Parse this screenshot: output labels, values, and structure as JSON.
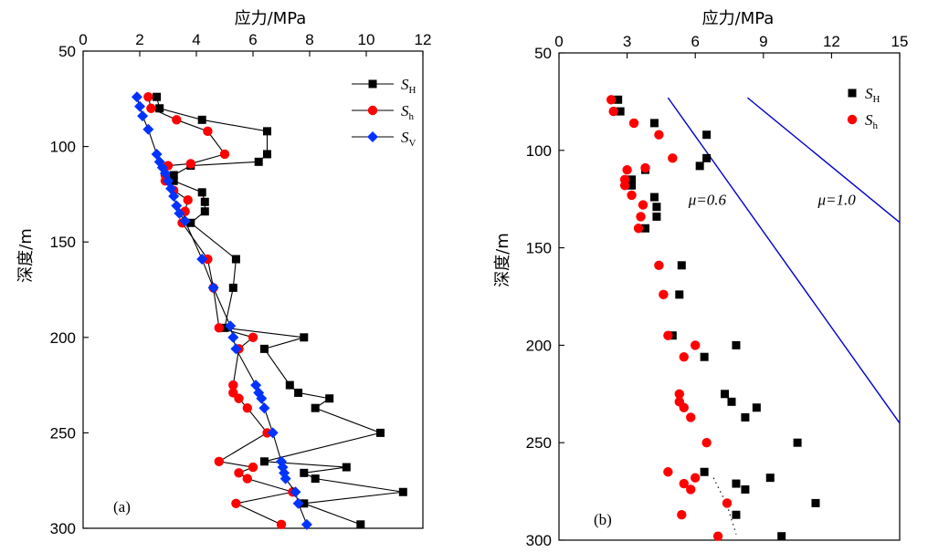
{
  "chart_data": [
    {
      "panel": "(a)",
      "type": "line",
      "xlabel": "应力/MPa",
      "ylabel": "深度/m",
      "xlim": [
        0,
        12
      ],
      "ylim": [
        50,
        300
      ],
      "y_inverted": true,
      "x_axis_position": "top",
      "xticks": [
        "0",
        "2",
        "4",
        "6",
        "8",
        "10",
        "12"
      ],
      "yticks": [
        "50",
        "100",
        "150",
        "200",
        "250",
        "300"
      ],
      "legend_placement": "top-right",
      "series": [
        {
          "name": "S",
          "sub": "H",
          "color": "#000000",
          "marker": "square",
          "points": [
            [
              2.6,
              74
            ],
            [
              2.7,
              80
            ],
            [
              4.2,
              86
            ],
            [
              6.5,
              92
            ],
            [
              6.5,
              104
            ],
            [
              6.2,
              108
            ],
            [
              3.8,
              110
            ],
            [
              3.2,
              115
            ],
            [
              3.2,
              118
            ],
            [
              4.2,
              124
            ],
            [
              4.3,
              129
            ],
            [
              4.3,
              134
            ],
            [
              3.8,
              140
            ],
            [
              5.4,
              159
            ],
            [
              5.3,
              174
            ],
            [
              5.0,
              195
            ],
            [
              7.8,
              200
            ],
            [
              6.4,
              206
            ],
            [
              7.3,
              225
            ],
            [
              7.6,
              229
            ],
            [
              8.7,
              232
            ],
            [
              8.2,
              237
            ],
            [
              10.5,
              250
            ],
            [
              6.4,
              265
            ],
            [
              9.3,
              268
            ],
            [
              7.8,
              271
            ],
            [
              8.2,
              274
            ],
            [
              11.3,
              281
            ],
            [
              7.8,
              287
            ],
            [
              9.8,
              298
            ]
          ]
        },
        {
          "name": "S",
          "sub": "h",
          "color": "#ff0000",
          "marker": "circle",
          "points": [
            [
              2.3,
              74
            ],
            [
              2.4,
              80
            ],
            [
              3.3,
              86
            ],
            [
              4.4,
              92
            ],
            [
              5.0,
              104
            ],
            [
              3.8,
              109
            ],
            [
              3.0,
              110
            ],
            [
              2.9,
              115
            ],
            [
              2.9,
              118
            ],
            [
              3.2,
              123
            ],
            [
              3.7,
              128
            ],
            [
              3.6,
              134
            ],
            [
              3.5,
              140
            ],
            [
              4.4,
              159
            ],
            [
              4.6,
              174
            ],
            [
              4.8,
              195
            ],
            [
              6.0,
              200
            ],
            [
              5.5,
              206
            ],
            [
              5.3,
              225
            ],
            [
              5.3,
              229
            ],
            [
              5.5,
              232
            ],
            [
              5.8,
              237
            ],
            [
              6.5,
              250
            ],
            [
              4.8,
              265
            ],
            [
              6.0,
              268
            ],
            [
              5.5,
              271
            ],
            [
              5.8,
              274
            ],
            [
              7.4,
              281
            ],
            [
              5.4,
              287
            ],
            [
              7.0,
              298
            ]
          ]
        },
        {
          "name": "S",
          "sub": "V",
          "color": "#0033ff",
          "marker": "diamond",
          "points": [
            [
              1.9,
              74
            ],
            [
              2.0,
              79
            ],
            [
              2.1,
              84
            ],
            [
              2.3,
              91
            ],
            [
              2.6,
              104
            ],
            [
              2.7,
              108
            ],
            [
              2.8,
              111
            ],
            [
              2.9,
              114
            ],
            [
              3.0,
              118
            ],
            [
              3.1,
              122
            ],
            [
              3.2,
              126
            ],
            [
              3.3,
              131
            ],
            [
              3.4,
              135
            ],
            [
              3.6,
              139
            ],
            [
              4.2,
              159
            ],
            [
              4.6,
              174
            ],
            [
              5.2,
              194
            ],
            [
              5.3,
              200
            ],
            [
              5.4,
              206
            ],
            [
              6.1,
              225
            ],
            [
              6.2,
              229
            ],
            [
              6.3,
              232
            ],
            [
              6.4,
              237
            ],
            [
              6.7,
              250
            ],
            [
              7.0,
              265
            ],
            [
              7.05,
              268
            ],
            [
              7.1,
              271
            ],
            [
              7.15,
              274
            ],
            [
              7.5,
              281
            ],
            [
              7.6,
              287
            ],
            [
              7.9,
              298
            ]
          ]
        }
      ]
    },
    {
      "panel": "(b)",
      "type": "scatter",
      "xlabel": "应力/MPa",
      "ylabel": "深度/m",
      "xlim": [
        0,
        15
      ],
      "ylim": [
        50,
        300
      ],
      "y_inverted": true,
      "x_axis_position": "top",
      "xticks": [
        "0",
        "3",
        "6",
        "9",
        "12",
        "15"
      ],
      "yticks": [
        "50",
        "100",
        "150",
        "200",
        "250",
        "300"
      ],
      "legend_placement": "top-right",
      "series": [
        {
          "name": "S",
          "sub": "H",
          "color": "#000000",
          "marker": "square",
          "points": [
            [
              2.6,
              74
            ],
            [
              2.7,
              80
            ],
            [
              4.2,
              86
            ],
            [
              6.5,
              92
            ],
            [
              6.5,
              104
            ],
            [
              6.2,
              108
            ],
            [
              3.8,
              110
            ],
            [
              3.2,
              115
            ],
            [
              3.2,
              118
            ],
            [
              4.2,
              124
            ],
            [
              4.3,
              129
            ],
            [
              4.3,
              134
            ],
            [
              3.8,
              140
            ],
            [
              5.4,
              159
            ],
            [
              5.3,
              174
            ],
            [
              5.0,
              195
            ],
            [
              7.8,
              200
            ],
            [
              6.4,
              206
            ],
            [
              7.3,
              225
            ],
            [
              7.6,
              229
            ],
            [
              8.7,
              232
            ],
            [
              8.2,
              237
            ],
            [
              10.5,
              250
            ],
            [
              6.4,
              265
            ],
            [
              9.3,
              268
            ],
            [
              7.8,
              271
            ],
            [
              8.2,
              274
            ],
            [
              11.3,
              281
            ],
            [
              7.8,
              287
            ],
            [
              9.8,
              298
            ]
          ]
        },
        {
          "name": "S",
          "sub": "h",
          "color": "#ff0000",
          "marker": "circle",
          "points": [
            [
              2.3,
              74
            ],
            [
              2.4,
              80
            ],
            [
              3.3,
              86
            ],
            [
              4.4,
              92
            ],
            [
              5.0,
              104
            ],
            [
              3.8,
              109
            ],
            [
              3.0,
              110
            ],
            [
              2.9,
              115
            ],
            [
              2.9,
              118
            ],
            [
              3.2,
              123
            ],
            [
              3.7,
              128
            ],
            [
              3.6,
              134
            ],
            [
              3.5,
              140
            ],
            [
              4.4,
              159
            ],
            [
              4.6,
              174
            ],
            [
              4.8,
              195
            ],
            [
              6.0,
              200
            ],
            [
              5.5,
              206
            ],
            [
              5.3,
              225
            ],
            [
              5.3,
              229
            ],
            [
              5.5,
              232
            ],
            [
              5.8,
              237
            ],
            [
              6.5,
              250
            ],
            [
              4.8,
              265
            ],
            [
              6.0,
              268
            ],
            [
              5.5,
              271
            ],
            [
              5.8,
              274
            ],
            [
              7.4,
              281
            ],
            [
              5.4,
              287
            ],
            [
              7.0,
              298
            ]
          ]
        }
      ],
      "reference_lines": [
        {
          "label": "μ=0.6",
          "color": "#0000cc",
          "points": [
            [
              4.8,
              73
            ],
            [
              15,
              240
            ]
          ],
          "label_at": [
            5.7,
            128
          ]
        },
        {
          "label": "μ=1.0",
          "color": "#0000cc",
          "points": [
            [
              8.3,
              73
            ],
            [
              15,
              137
            ]
          ],
          "label_at": [
            11.4,
            128
          ]
        }
      ],
      "dotted_segment": {
        "color": "#000000",
        "points": [
          [
            6.8,
            268
          ],
          [
            7.4,
            282
          ],
          [
            7.8,
            297
          ]
        ]
      }
    }
  ]
}
